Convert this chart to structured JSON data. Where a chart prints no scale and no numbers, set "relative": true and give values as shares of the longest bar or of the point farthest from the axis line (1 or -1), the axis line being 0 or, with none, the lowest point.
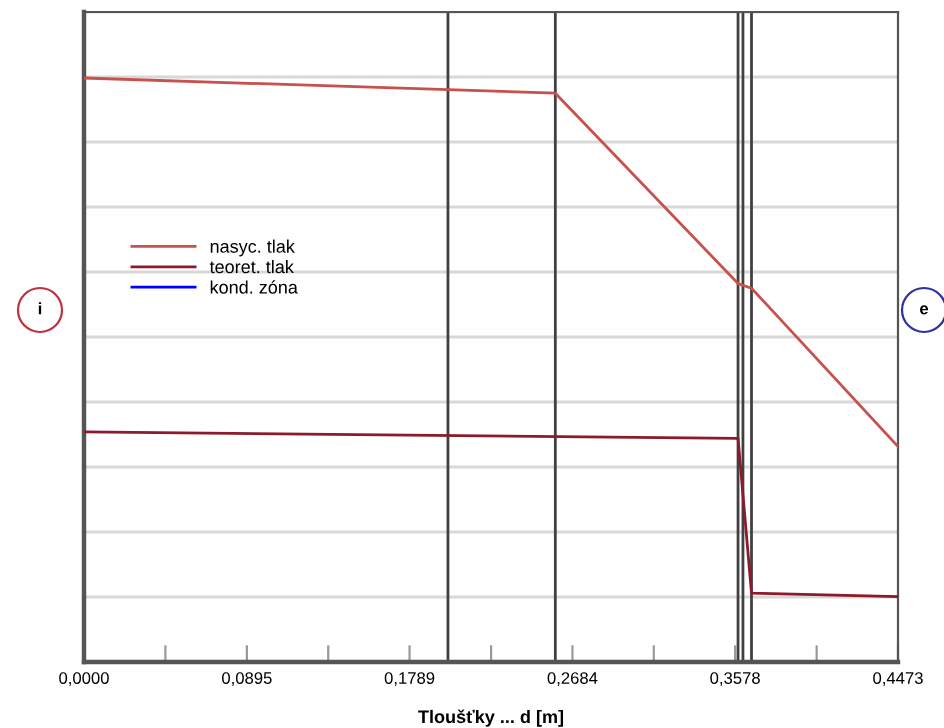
{
  "chart_data": {
    "type": "line",
    "relative": true,
    "xlabel": "Tloušťky ... d [m]",
    "xlim": [
      0,
      0.4473
    ],
    "xticks": [
      {
        "value": 0,
        "label": "0,0000"
      },
      {
        "value": 0.04473,
        "label": null
      },
      {
        "value": 0.0895,
        "label": "0,0895"
      },
      {
        "value": 0.1342,
        "label": null
      },
      {
        "value": 0.1789,
        "label": "0,1789"
      },
      {
        "value": 0.2237,
        "label": null
      },
      {
        "value": 0.2684,
        "label": "0,2684"
      },
      {
        "value": 0.3131,
        "label": null
      },
      {
        "value": 0.3578,
        "label": "0,3578"
      },
      {
        "value": 0.4026,
        "label": null
      },
      {
        "value": 0.4473,
        "label": "0,4473"
      }
    ],
    "series": [
      {
        "name": "nasyc. tlak",
        "color": "#c8504d",
        "x": [
          0,
          0.259,
          0.3594,
          0.3668,
          0.4473
        ],
        "values": [
          1.0,
          0.974,
          0.648,
          0.64,
          0.369
        ]
      },
      {
        "name": "teoret. tlak",
        "color": "#8b1a2a",
        "x": [
          0,
          0.3594,
          0.3668,
          0.4473
        ],
        "values": [
          0.394,
          0.383,
          0.118,
          0.112
        ]
      },
      {
        "name": "kond. zóna",
        "color": "#0000ff"
      }
    ],
    "ref_lines": [
      {
        "axis": "x",
        "value": 0.2,
        "color": "#404040"
      },
      {
        "axis": "x",
        "value": 0.259,
        "color": "#404040"
      },
      {
        "axis": "x",
        "value": 0.3594,
        "color": "#404040"
      },
      {
        "axis": "x",
        "value": 0.3621,
        "color": "#404040"
      },
      {
        "axis": "x",
        "value": 0.3668,
        "color": "#404040"
      }
    ],
    "annotations": [
      "i",
      "e"
    ],
    "grid": "y",
    "legend": "left",
    "line_style": "solid",
    "marker": "none"
  }
}
